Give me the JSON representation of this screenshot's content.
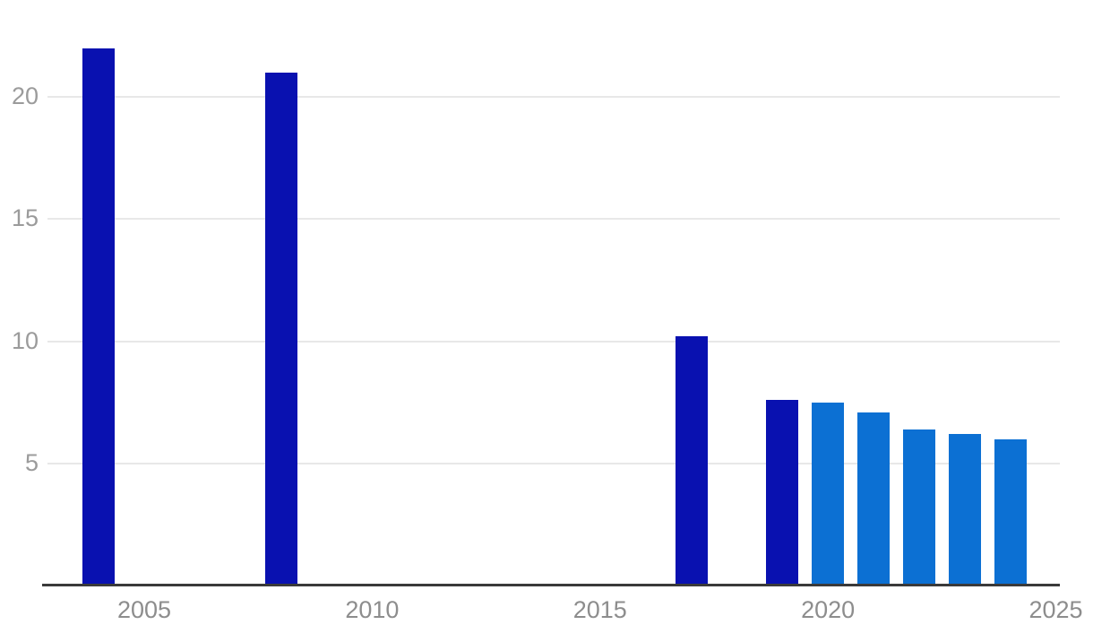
{
  "chart_data": {
    "type": "bar",
    "title": "",
    "xlabel": "",
    "ylabel": "",
    "x": [
      2004,
      2008,
      2017,
      2019,
      2020,
      2021,
      2022,
      2023,
      2024
    ],
    "values": [
      22.0,
      21.0,
      10.2,
      7.6,
      7.5,
      7.1,
      6.4,
      6.2,
      6.0
    ],
    "bar_color_keys": [
      "dark",
      "dark",
      "dark",
      "dark",
      "light",
      "light",
      "light",
      "light",
      "light"
    ],
    "colors": {
      "dark": "#0911b0",
      "light": "#0c70d3"
    },
    "x_ticks": [
      2005,
      2010,
      2015,
      2020,
      2025
    ],
    "y_ticks": [
      5,
      10,
      15,
      20
    ],
    "xlim": [
      2002.8,
      2025.1
    ],
    "ylim": [
      0,
      24
    ],
    "grid": "horizontal",
    "legend": "none",
    "gridline_color": "#e8e8e8",
    "axis_line_color": "#3a3a3a",
    "y_tick_label_color": "#9b9b9b",
    "x_tick_label_color": "#8d8d8d",
    "background_color": "#ffffff"
  }
}
